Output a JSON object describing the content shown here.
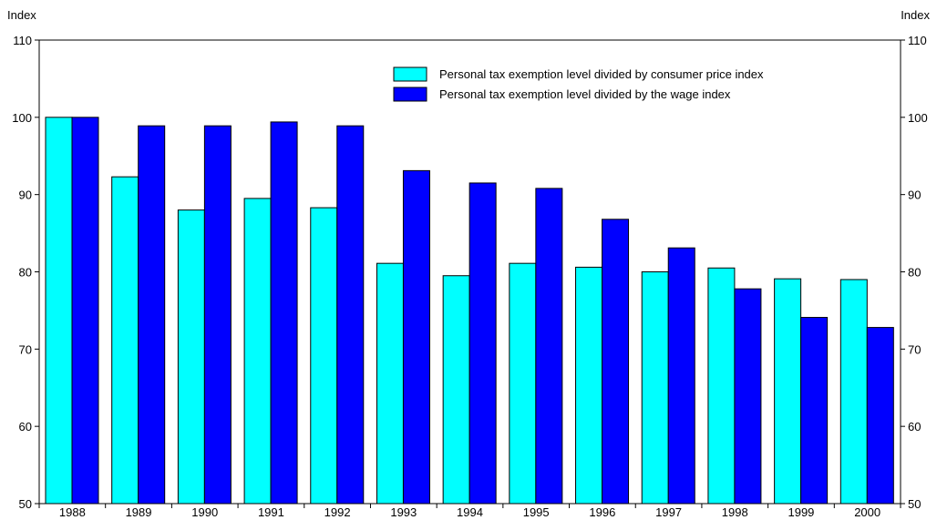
{
  "chart_data": {
    "type": "bar",
    "ylabel_left": "Index",
    "ylabel_right": "Index",
    "ylim": [
      50,
      110
    ],
    "yticks": [
      50,
      60,
      70,
      80,
      90,
      100,
      110
    ],
    "grid": false,
    "legend_position": "top-right",
    "categories": [
      "1988",
      "1989",
      "1990",
      "1991",
      "1992",
      "1993",
      "1994",
      "1995",
      "1996",
      "1997",
      "1998",
      "1999",
      "2000"
    ],
    "series": [
      {
        "name": "Personal tax exemption level divided by consumer price index",
        "color": "#00FFFF",
        "values": [
          100,
          92.3,
          88,
          89.5,
          88.3,
          81.1,
          79.5,
          81.1,
          80.6,
          80,
          80.5,
          79.1,
          79
        ]
      },
      {
        "name": "Personal tax exemption level divided by the wage index",
        "color": "#0000FF",
        "values": [
          100,
          98.9,
          98.9,
          99.4,
          98.9,
          93.1,
          91.5,
          90.8,
          86.8,
          83.1,
          77.8,
          74.1,
          72.8
        ]
      }
    ]
  }
}
